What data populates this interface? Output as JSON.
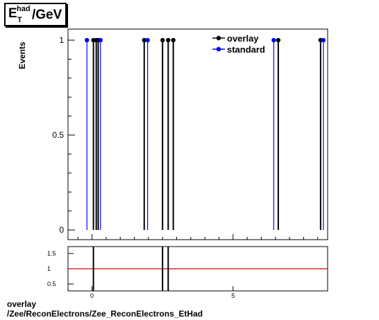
{
  "title": {
    "main": "E",
    "sup": "had",
    "sub": "T",
    "rest": "/GeV"
  },
  "footer": {
    "line1": "overlay",
    "line2": "/Zee/ReconElectrons/Zee_ReconElectrons_EtHad"
  },
  "colors": {
    "overlay": "#000000",
    "standard": "#0000ff",
    "ratio_line": "#cc0000"
  },
  "chart_data": [
    {
      "type": "scatter",
      "ylabel": "Events",
      "ylim": [
        0,
        1.06
      ],
      "xlim": [
        -0.85,
        8.35
      ],
      "yticks": [
        0,
        0.5,
        1
      ],
      "ytick_labels": [
        "0",
        "0.5",
        "1"
      ],
      "legend_placement": "top-right",
      "series": [
        {
          "name": "overlay",
          "color": "#000000",
          "x": [
            0.05,
            0.15,
            0.22,
            1.85,
            2.5,
            2.7,
            2.88,
            6.6,
            8.1
          ],
          "y": [
            1,
            1,
            1,
            1,
            1,
            1,
            1,
            1,
            1
          ]
        },
        {
          "name": "standard",
          "color": "#0000ff",
          "x": [
            -0.18,
            0.3,
            1.97,
            6.44,
            8.2
          ],
          "y": [
            1,
            1,
            1,
            1,
            1
          ]
        }
      ]
    },
    {
      "type": "line",
      "xlim": [
        -0.85,
        8.35
      ],
      "ylim": [
        0.3,
        1.75
      ],
      "yticks": [
        0.5,
        1,
        1.5
      ],
      "ytick_labels": [
        "0.5",
        "1",
        "1.5"
      ],
      "xticks": [
        0,
        5
      ],
      "xtick_labels": [
        "0",
        "5"
      ],
      "reference_line": 1,
      "ratio_points": {
        "x": [
          0.05,
          2.5,
          2.7
        ],
        "y": [
          1,
          1,
          1
        ]
      }
    }
  ]
}
